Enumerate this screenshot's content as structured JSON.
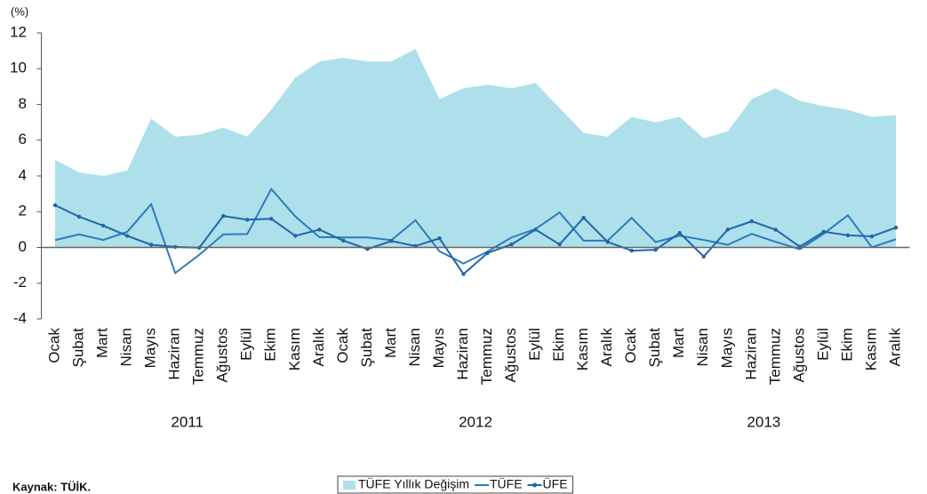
{
  "chart_data": {
    "type": "line",
    "y_unit": "(%)",
    "categories": [
      "Ocak",
      "Şubat",
      "Mart",
      "Nisan",
      "Mayıs",
      "Haziran",
      "Temmuz",
      "Ağustos",
      "Eylül",
      "Ekim",
      "Kasım",
      "Aralık",
      "Ocak",
      "Şubat",
      "Mart",
      "Nisan",
      "Mayıs",
      "Haziran",
      "Temmuz",
      "Ağustos",
      "Eylül",
      "Ekim",
      "Kasım",
      "Aralık",
      "Ocak",
      "Şubat",
      "Mart",
      "Nisan",
      "Mayıs",
      "Haziran",
      "Temmuz",
      "Ağustos",
      "Eylül",
      "Ekim",
      "Kasım",
      "Aralık"
    ],
    "year_labels": [
      "2011",
      "2012",
      "2013"
    ],
    "series": [
      {
        "name": "TÜFE Yıllık Değişim",
        "style": "area",
        "color": "#ade0ea",
        "values": [
          4.9,
          4.2,
          4.0,
          4.3,
          7.2,
          6.2,
          6.3,
          6.7,
          6.2,
          7.7,
          9.5,
          10.4,
          10.6,
          10.4,
          10.4,
          11.1,
          8.3,
          8.9,
          9.1,
          8.9,
          9.2,
          7.8,
          6.4,
          6.2,
          7.3,
          7.0,
          7.3,
          6.1,
          6.5,
          8.3,
          8.9,
          8.2,
          7.9,
          7.7,
          7.3,
          7.4
        ]
      },
      {
        "name": "TÜFE",
        "style": "line",
        "color": "#2b7bbd",
        "values": [
          0.41,
          0.73,
          0.42,
          0.87,
          2.42,
          -1.43,
          -0.41,
          0.73,
          0.75,
          3.27,
          1.73,
          0.58,
          0.56,
          0.56,
          0.41,
          1.52,
          -0.21,
          -0.9,
          -0.23,
          0.56,
          1.03,
          1.96,
          0.38,
          0.38,
          1.65,
          0.3,
          0.66,
          0.42,
          0.15,
          0.76,
          0.31,
          -0.1,
          0.77,
          1.8,
          0.01,
          0.46
        ]
      },
      {
        "name": "ÜFE",
        "style": "line-marker",
        "color": "#1f66a8",
        "values": [
          2.36,
          1.72,
          1.22,
          0.65,
          0.15,
          0.03,
          -0.02,
          1.76,
          1.55,
          1.6,
          0.65,
          1.0,
          0.38,
          -0.09,
          0.36,
          0.08,
          0.51,
          -1.49,
          -0.31,
          0.17,
          1.0,
          0.17,
          1.66,
          0.31,
          -0.18,
          -0.13,
          0.81,
          -0.51,
          1.0,
          1.46,
          0.99,
          0.04,
          0.88,
          0.68,
          0.62,
          1.11
        ]
      }
    ],
    "ylim": [
      -4,
      12
    ],
    "yticks": [
      -4,
      -2,
      0,
      2,
      4,
      6,
      8,
      10,
      12
    ],
    "grid": false,
    "source": "Kaynak: TÜİK."
  }
}
